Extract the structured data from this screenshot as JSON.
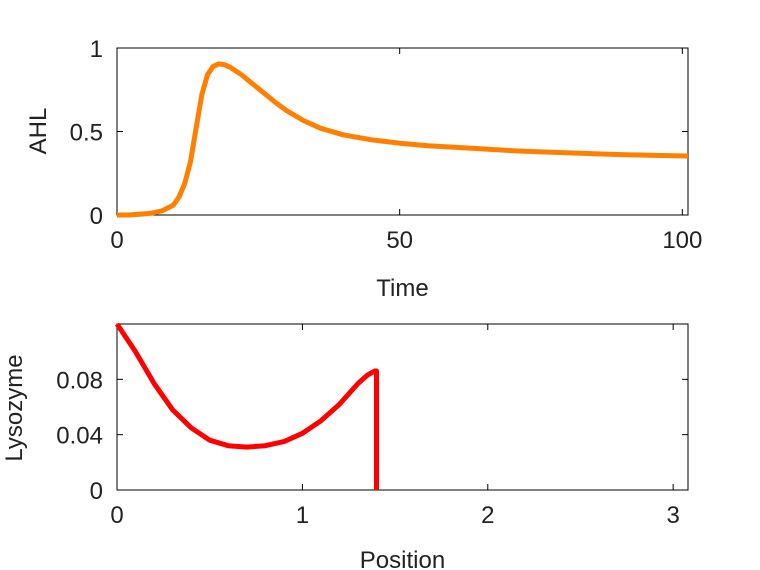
{
  "chart_data": [
    {
      "type": "line",
      "xlabel": "Time",
      "ylabel": "AHL",
      "xlim": [
        0,
        101
      ],
      "ylim": [
        0,
        1
      ],
      "xticks": [
        0,
        50,
        100
      ],
      "xtick_labels": [
        "0",
        "50",
        "100"
      ],
      "yticks": [
        0,
        0.5,
        1
      ],
      "ytick_labels": [
        "0",
        "0.5",
        "1"
      ],
      "grid": false,
      "series": [
        {
          "color": "#ff8000",
          "x": [
            0,
            2,
            4,
            6,
            8,
            10,
            11,
            12,
            13,
            14,
            15,
            16,
            17,
            18,
            19,
            20,
            22,
            24,
            26,
            28,
            30,
            33,
            36,
            40,
            45,
            50,
            55,
            60,
            65,
            70,
            75,
            80,
            85,
            90,
            95,
            101
          ],
          "y": [
            0.0,
            0.0,
            0.005,
            0.01,
            0.025,
            0.06,
            0.11,
            0.19,
            0.32,
            0.52,
            0.72,
            0.84,
            0.89,
            0.905,
            0.9,
            0.885,
            0.84,
            0.785,
            0.73,
            0.675,
            0.625,
            0.565,
            0.52,
            0.48,
            0.45,
            0.43,
            0.415,
            0.405,
            0.395,
            0.385,
            0.378,
            0.372,
            0.366,
            0.361,
            0.357,
            0.353
          ]
        }
      ]
    },
    {
      "type": "line",
      "xlabel": "Position",
      "ylabel": "Lysozyme",
      "xlim": [
        0,
        3.08
      ],
      "ylim": [
        0,
        0.12
      ],
      "xticks": [
        0,
        1,
        2,
        3
      ],
      "xtick_labels": [
        "0",
        "1",
        "2",
        "3"
      ],
      "yticks": [
        0,
        0.04,
        0.08
      ],
      "ytick_labels": [
        "0",
        "0.04",
        "0.08"
      ],
      "grid": false,
      "series": [
        {
          "color": "#ff0000",
          "x": [
            0,
            0.1,
            0.2,
            0.3,
            0.4,
            0.5,
            0.6,
            0.7,
            0.8,
            0.9,
            1.0,
            1.1,
            1.2,
            1.3,
            1.35,
            1.39,
            1.4,
            1.4
          ],
          "y": [
            0.12,
            0.1,
            0.077,
            0.058,
            0.045,
            0.036,
            0.032,
            0.031,
            0.032,
            0.035,
            0.041,
            0.05,
            0.062,
            0.077,
            0.083,
            0.086,
            0.086,
            0.0
          ]
        }
      ]
    }
  ]
}
